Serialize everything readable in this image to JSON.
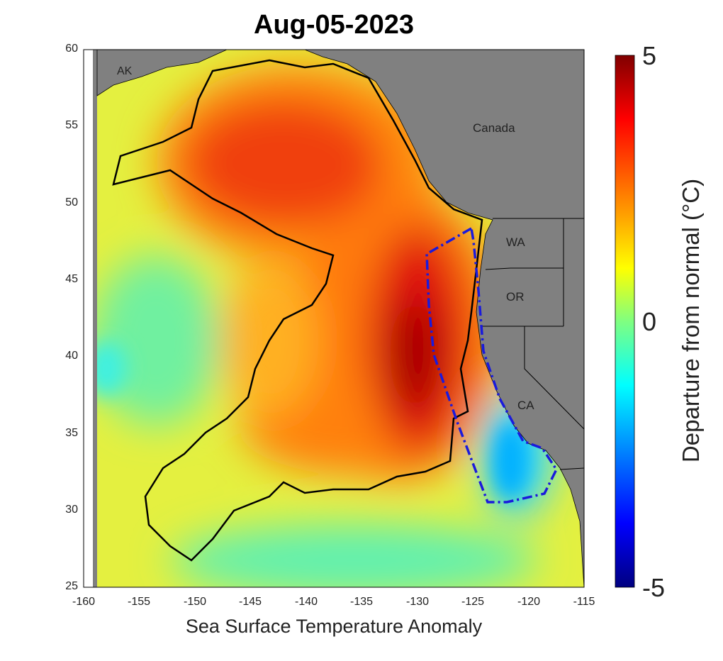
{
  "title": "Aug-05-2023",
  "xlabel": "Sea Surface Temperature Anomaly",
  "x_ticks": [
    "-160",
    "-155",
    "-150",
    "-145",
    "-140",
    "-135",
    "-130",
    "-125",
    "-120",
    "-115"
  ],
  "y_ticks": [
    "60",
    "55",
    "50",
    "45",
    "40",
    "35",
    "30",
    "25"
  ],
  "map_labels": {
    "ak": "AK",
    "canada": "Canada",
    "wa": "WA",
    "or": "OR",
    "ca": "CA"
  },
  "colorbar": {
    "ticks": [
      "5",
      "0",
      "-5"
    ],
    "label": "Departure from normal (°C)",
    "range": [
      -5,
      5
    ],
    "colormap": "jet"
  },
  "colors": {
    "land": "#808080",
    "boundary": "#1a1adc",
    "contour": "#000000"
  }
}
